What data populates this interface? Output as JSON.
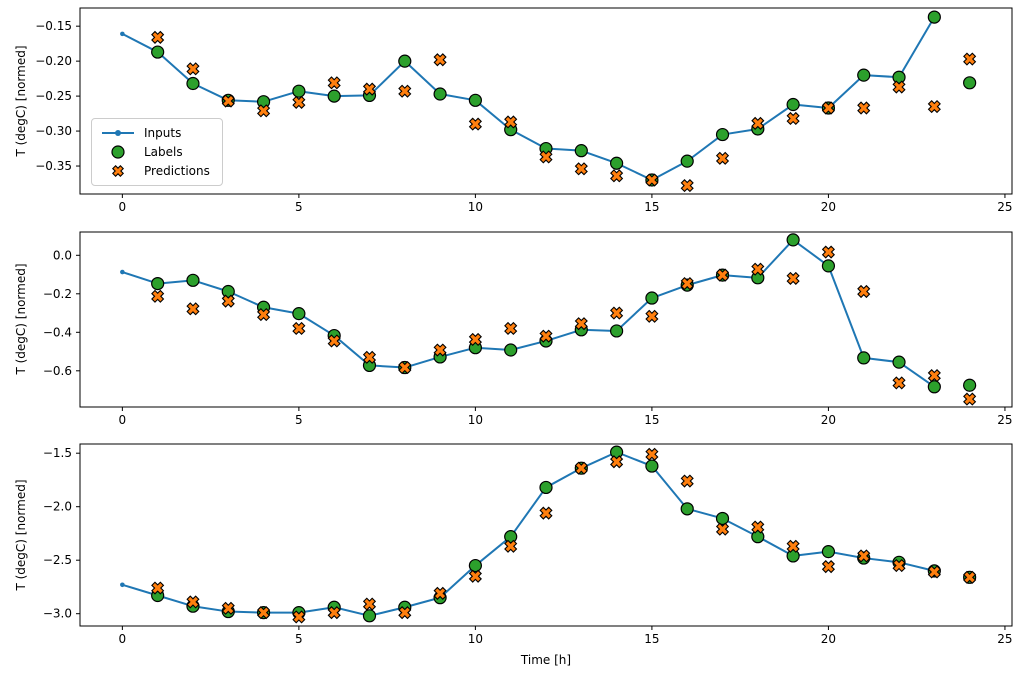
{
  "figure": {
    "ylabel": "T (degC) [normed]",
    "xlabel": "Time [h]",
    "legend": {
      "inputs": "Inputs",
      "labels": "Labels",
      "predictions": "Predictions"
    },
    "colors": {
      "inputs": "#1f77b4",
      "labels": "#2ca02c",
      "predictions": "#ff7f0e",
      "marker_edge": "#000000",
      "spine": "#000000",
      "legend_border": "#cccccc"
    }
  },
  "chart_data": [
    {
      "type": "line",
      "title": "",
      "ylabel": "T (degC) [normed]",
      "xlabel": "",
      "xlim": [
        -1.2,
        25.2
      ],
      "ylim": [
        -0.39,
        -0.124
      ],
      "xticks": [
        0,
        5,
        10,
        15,
        20,
        25
      ],
      "yticks": [
        -0.15,
        -0.2,
        -0.25,
        -0.3,
        -0.35
      ],
      "ytick_decimals": 2,
      "legend_visible": true,
      "series": [
        {
          "name": "Inputs",
          "style": "line-dot",
          "x": [
            0,
            1,
            2,
            3,
            4,
            5,
            6,
            7,
            8,
            9,
            10,
            11,
            12,
            13,
            14,
            15,
            16,
            17,
            18,
            19,
            20,
            21,
            22,
            23
          ],
          "y": [
            -0.161,
            -0.187,
            -0.232,
            -0.256,
            -0.258,
            -0.243,
            -0.25,
            -0.249,
            -0.2,
            -0.247,
            -0.256,
            -0.298,
            -0.325,
            -0.328,
            -0.346,
            -0.37,
            -0.343,
            -0.305,
            -0.297,
            -0.262,
            -0.267,
            -0.22,
            -0.223,
            -0.137
          ]
        },
        {
          "name": "Labels",
          "style": "circle",
          "x": [
            1,
            2,
            3,
            4,
            5,
            6,
            7,
            8,
            9,
            10,
            11,
            12,
            13,
            14,
            15,
            16,
            17,
            18,
            19,
            20,
            21,
            22,
            23,
            24
          ],
          "y": [
            -0.187,
            -0.232,
            -0.256,
            -0.258,
            -0.243,
            -0.25,
            -0.249,
            -0.2,
            -0.247,
            -0.256,
            -0.298,
            -0.325,
            -0.328,
            -0.346,
            -0.37,
            -0.343,
            -0.305,
            -0.297,
            -0.262,
            -0.267,
            -0.22,
            -0.223,
            -0.137,
            -0.231
          ]
        },
        {
          "name": "Predictions",
          "style": "x-marker",
          "x": [
            1,
            2,
            3,
            4,
            5,
            6,
            7,
            8,
            9,
            10,
            11,
            12,
            13,
            14,
            15,
            16,
            17,
            18,
            19,
            20,
            21,
            22,
            23,
            24
          ],
          "y": [
            -0.166,
            -0.211,
            -0.257,
            -0.271,
            -0.259,
            -0.231,
            -0.24,
            -0.243,
            -0.198,
            -0.29,
            -0.287,
            -0.337,
            -0.354,
            -0.364,
            -0.37,
            -0.378,
            -0.339,
            -0.289,
            -0.282,
            -0.267,
            -0.267,
            -0.237,
            -0.265,
            -0.197
          ]
        }
      ]
    },
    {
      "type": "line",
      "title": "",
      "ylabel": "T (degC) [normed]",
      "xlabel": "",
      "xlim": [
        -1.2,
        25.2
      ],
      "ylim": [
        -0.788,
        0.121
      ],
      "xticks": [
        0,
        5,
        10,
        15,
        20,
        25
      ],
      "yticks": [
        0.0,
        -0.2,
        -0.4,
        -0.6
      ],
      "ytick_decimals": 1,
      "legend_visible": false,
      "series": [
        {
          "name": "Inputs",
          "style": "line-dot",
          "x": [
            0,
            1,
            2,
            3,
            4,
            5,
            6,
            7,
            8,
            9,
            10,
            11,
            12,
            13,
            14,
            15,
            16,
            17,
            18,
            19,
            20,
            21,
            22,
            23
          ],
          "y": [
            -0.087,
            -0.147,
            -0.13,
            -0.188,
            -0.27,
            -0.303,
            -0.417,
            -0.572,
            -0.583,
            -0.528,
            -0.48,
            -0.492,
            -0.445,
            -0.387,
            -0.393,
            -0.222,
            -0.155,
            -0.103,
            -0.117,
            0.08,
            -0.055,
            -0.533,
            -0.555,
            -0.683
          ]
        },
        {
          "name": "Labels",
          "style": "circle",
          "x": [
            1,
            2,
            3,
            4,
            5,
            6,
            7,
            8,
            9,
            10,
            11,
            12,
            13,
            14,
            15,
            16,
            17,
            18,
            19,
            20,
            21,
            22,
            23,
            24
          ],
          "y": [
            -0.147,
            -0.13,
            -0.188,
            -0.27,
            -0.303,
            -0.417,
            -0.572,
            -0.583,
            -0.528,
            -0.48,
            -0.492,
            -0.445,
            -0.387,
            -0.393,
            -0.222,
            -0.155,
            -0.103,
            -0.117,
            0.08,
            -0.055,
            -0.533,
            -0.555,
            -0.683,
            -0.675
          ]
        },
        {
          "name": "Predictions",
          "style": "x-marker",
          "x": [
            1,
            2,
            3,
            4,
            5,
            6,
            7,
            8,
            9,
            10,
            11,
            12,
            13,
            14,
            15,
            16,
            17,
            18,
            19,
            20,
            21,
            22,
            23,
            24
          ],
          "y": [
            -0.213,
            -0.278,
            -0.238,
            -0.308,
            -0.38,
            -0.445,
            -0.53,
            -0.583,
            -0.492,
            -0.437,
            -0.38,
            -0.42,
            -0.355,
            -0.3,
            -0.317,
            -0.147,
            -0.103,
            -0.072,
            -0.12,
            0.017,
            -0.188,
            -0.663,
            -0.625,
            -0.747
          ]
        }
      ]
    },
    {
      "type": "line",
      "title": "",
      "ylabel": "T (degC) [normed]",
      "xlabel": "Time [h]",
      "xlim": [
        -1.2,
        25.2
      ],
      "ylim": [
        -3.115,
        -1.414
      ],
      "xticks": [
        0,
        5,
        10,
        15,
        20,
        25
      ],
      "yticks": [
        -1.5,
        -2.0,
        -2.5,
        -3.0
      ],
      "ytick_decimals": 1,
      "legend_visible": false,
      "series": [
        {
          "name": "Inputs",
          "style": "line-dot",
          "x": [
            0,
            1,
            2,
            3,
            4,
            5,
            6,
            7,
            8,
            9,
            10,
            11,
            12,
            13,
            14,
            15,
            16,
            17,
            18,
            19,
            20,
            21,
            22,
            23
          ],
          "y": [
            -2.73,
            -2.83,
            -2.93,
            -2.98,
            -2.99,
            -2.99,
            -2.94,
            -3.02,
            -2.94,
            -2.85,
            -2.55,
            -2.28,
            -1.82,
            -1.64,
            -1.49,
            -1.62,
            -2.02,
            -2.11,
            -2.28,
            -2.46,
            -2.42,
            -2.48,
            -2.52,
            -2.6
          ]
        },
        {
          "name": "Labels",
          "style": "circle",
          "x": [
            1,
            2,
            3,
            4,
            5,
            6,
            7,
            8,
            9,
            10,
            11,
            12,
            13,
            14,
            15,
            16,
            17,
            18,
            19,
            20,
            21,
            22,
            23,
            24
          ],
          "y": [
            -2.83,
            -2.93,
            -2.98,
            -2.99,
            -2.99,
            -2.94,
            -3.02,
            -2.94,
            -2.85,
            -2.55,
            -2.28,
            -1.82,
            -1.64,
            -1.49,
            -1.62,
            -2.02,
            -2.11,
            -2.28,
            -2.46,
            -2.42,
            -2.48,
            -2.52,
            -2.6,
            -2.66
          ]
        },
        {
          "name": "Predictions",
          "style": "x-marker",
          "x": [
            1,
            2,
            3,
            4,
            5,
            6,
            7,
            8,
            9,
            10,
            11,
            12,
            13,
            14,
            15,
            16,
            17,
            18,
            19,
            20,
            21,
            22,
            23,
            24
          ],
          "y": [
            -2.76,
            -2.89,
            -2.95,
            -2.99,
            -3.03,
            -2.99,
            -2.91,
            -2.99,
            -2.81,
            -2.65,
            -2.37,
            -2.06,
            -1.64,
            -1.58,
            -1.51,
            -1.76,
            -2.21,
            -2.19,
            -2.37,
            -2.56,
            -2.46,
            -2.55,
            -2.61,
            -2.66
          ]
        }
      ]
    }
  ]
}
